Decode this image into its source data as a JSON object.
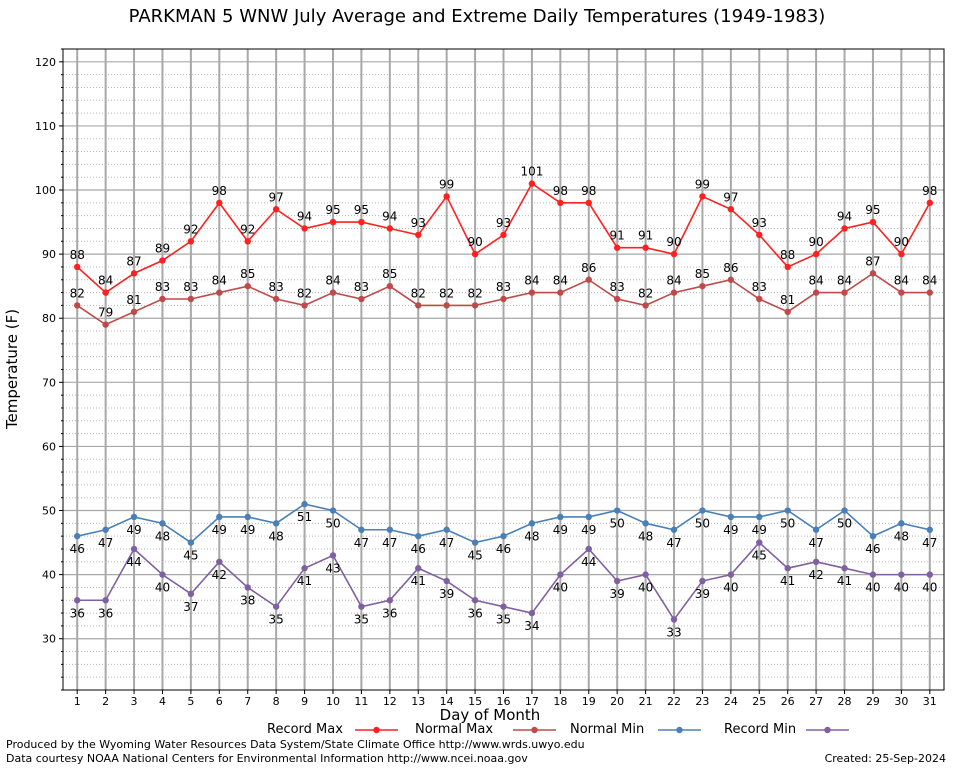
{
  "chart_data": {
    "type": "line",
    "title": "PARKMAN 5 WNW July Average and Extreme Daily Temperatures (1949-1983)",
    "xlabel": "Day of Month",
    "ylabel": "Temperature (F)",
    "ylim": [
      22,
      122
    ],
    "y_ticks": [
      30,
      40,
      50,
      60,
      70,
      80,
      90,
      100,
      110,
      120
    ],
    "grid": true,
    "x": [
      1,
      2,
      3,
      4,
      5,
      6,
      7,
      8,
      9,
      10,
      11,
      12,
      13,
      14,
      15,
      16,
      17,
      18,
      19,
      20,
      21,
      22,
      23,
      24,
      25,
      26,
      27,
      28,
      29,
      30,
      31
    ],
    "series": [
      {
        "name": "Record Max",
        "color": "#ff2020",
        "values": [
          88,
          84,
          87,
          89,
          92,
          98,
          92,
          97,
          94,
          95,
          95,
          94,
          93,
          99,
          90,
          93,
          101,
          98,
          98,
          91,
          91,
          90,
          99,
          97,
          93,
          88,
          90,
          94,
          95,
          90,
          98
        ]
      },
      {
        "name": "Normal Max",
        "color": "#c04a4a",
        "values": [
          82,
          79,
          81,
          83,
          83,
          84,
          85,
          83,
          82,
          84,
          83,
          85,
          82,
          82,
          82,
          83,
          84,
          84,
          86,
          83,
          82,
          84,
          85,
          86,
          83,
          81,
          84,
          84,
          87,
          84,
          84
        ]
      },
      {
        "name": "Normal Min",
        "color": "#4a80b8",
        "values": [
          46,
          47,
          49,
          48,
          45,
          49,
          49,
          48,
          51,
          50,
          47,
          47,
          46,
          47,
          45,
          46,
          48,
          49,
          49,
          50,
          48,
          47,
          50,
          49,
          49,
          50,
          47,
          50,
          46,
          48,
          47
        ]
      },
      {
        "name": "Record Min",
        "color": "#8060a0",
        "values": [
          36,
          36,
          44,
          40,
          37,
          42,
          38,
          35,
          41,
          43,
          35,
          36,
          41,
          39,
          36,
          35,
          34,
          40,
          44,
          39,
          40,
          33,
          39,
          40,
          45,
          41,
          42,
          41,
          40,
          40,
          40
        ]
      }
    ]
  },
  "legend": {
    "record_max": "Record Max",
    "normal_max": "Normal Max",
    "normal_min": "Normal Min",
    "record_min": "Record Min"
  },
  "footer": {
    "produced_by": "Produced by the Wyoming Water Resources Data System/State Climate Office http://www.wrds.uwyo.edu",
    "courtesy": "Data courtesy NOAA National Centers for Environmental Information http://www.ncei.noaa.gov",
    "created": "Created:  25-Sep-2024"
  }
}
